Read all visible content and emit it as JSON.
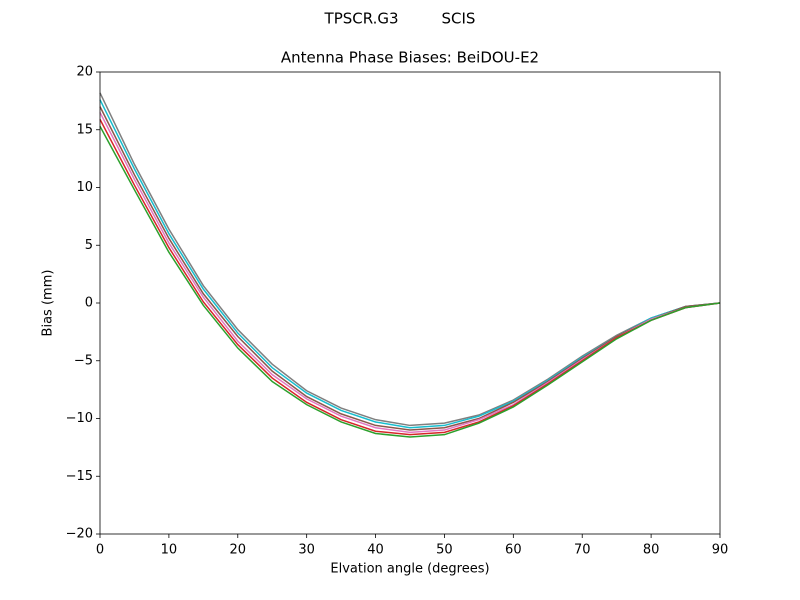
{
  "chart_data": {
    "type": "line",
    "suptitle": "TPSCR.G3         SCIS",
    "title": "Antenna Phase Biases: BeiDOU-E2",
    "xlabel": "Elvation angle (degrees)",
    "ylabel": "Bias (mm)",
    "x": [
      0,
      5,
      10,
      15,
      20,
      25,
      30,
      35,
      40,
      45,
      50,
      55,
      60,
      65,
      70,
      75,
      80,
      85,
      90
    ],
    "xlim": [
      0,
      90
    ],
    "xticks": [
      0,
      10,
      20,
      30,
      40,
      50,
      60,
      70,
      80,
      90
    ],
    "ylim": [
      -20,
      20
    ],
    "yticks": [
      {
        "value": -20,
        "label": "−20"
      },
      {
        "value": -15,
        "label": "−15"
      },
      {
        "value": -10,
        "label": "−10"
      },
      {
        "value": -5,
        "label": "−5"
      },
      0,
      5,
      10,
      15,
      20
    ],
    "series": [
      {
        "color": "#7f7f7f",
        "values": [
          18.2,
          12.0,
          6.4,
          1.5,
          -2.3,
          -5.3,
          -7.6,
          -9.1,
          -10.1,
          -10.6,
          -10.4,
          -9.7,
          -8.4,
          -6.6,
          -4.6,
          -2.8,
          -1.3,
          -0.3,
          0
        ]
      },
      {
        "color": "#17becf",
        "values": [
          17.6,
          11.6,
          6.0,
          1.2,
          -2.6,
          -5.6,
          -7.8,
          -9.3,
          -10.3,
          -10.8,
          -10.6,
          -9.8,
          -8.5,
          -6.7,
          -4.7,
          -2.9,
          -1.3,
          -0.3,
          0
        ]
      },
      {
        "color": "#8c564b",
        "values": [
          17.0,
          11.1,
          5.6,
          0.8,
          -2.9,
          -5.9,
          -8.1,
          -9.6,
          -10.6,
          -11.0,
          -10.8,
          -10.0,
          -8.6,
          -6.8,
          -4.8,
          -2.9,
          -1.4,
          -0.3,
          0
        ]
      },
      {
        "color": "#e377c2",
        "values": [
          16.5,
          10.7,
          5.2,
          0.5,
          -3.3,
          -6.2,
          -8.3,
          -9.8,
          -10.8,
          -11.2,
          -11.0,
          -10.1,
          -8.8,
          -6.9,
          -4.9,
          -3.0,
          -1.4,
          -0.4,
          0
        ]
      },
      {
        "color": "#d62728",
        "values": [
          15.9,
          10.2,
          4.8,
          0.1,
          -3.6,
          -6.5,
          -8.6,
          -10.1,
          -11.1,
          -11.4,
          -11.2,
          -10.3,
          -8.9,
          -7.0,
          -5.0,
          -3.0,
          -1.5,
          -0.4,
          0
        ]
      },
      {
        "color": "#2ca02c",
        "values": [
          15.3,
          9.8,
          4.4,
          -0.2,
          -3.9,
          -6.8,
          -8.8,
          -10.3,
          -11.3,
          -11.6,
          -11.4,
          -10.4,
          -9.0,
          -7.1,
          -5.1,
          -3.1,
          -1.5,
          -0.4,
          0
        ]
      }
    ]
  }
}
